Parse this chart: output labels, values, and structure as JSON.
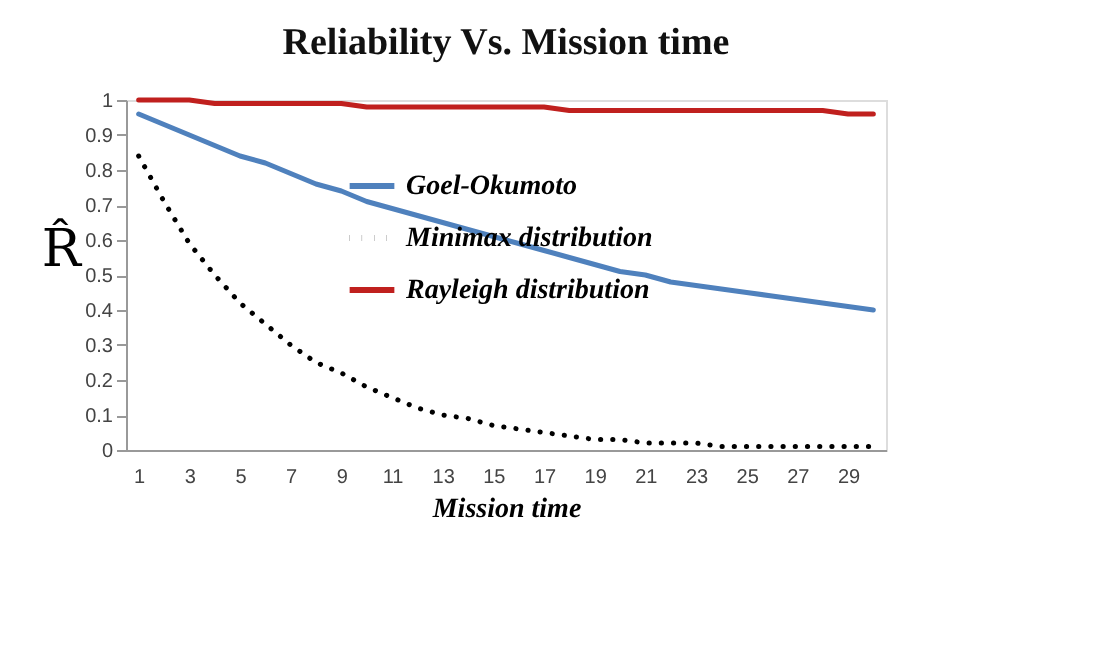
{
  "chart_data": {
    "type": "line",
    "title": "Reliability Vs. Mission time",
    "xlabel": "Mission time",
    "ylabel": "R̂",
    "x": [
      1,
      2,
      3,
      4,
      5,
      6,
      7,
      8,
      9,
      10,
      11,
      12,
      13,
      14,
      15,
      16,
      17,
      18,
      19,
      20,
      21,
      22,
      23,
      24,
      25,
      26,
      27,
      28,
      29,
      30
    ],
    "xlim": [
      0.5,
      30.5
    ],
    "xticks": [
      1,
      3,
      5,
      7,
      9,
      11,
      13,
      15,
      17,
      19,
      21,
      23,
      25,
      27,
      29
    ],
    "ylim": [
      0,
      1
    ],
    "yticks": [
      0,
      0.1,
      0.2,
      0.3,
      0.4,
      0.5,
      0.6,
      0.7,
      0.8,
      0.9,
      1
    ],
    "grid": false,
    "legend": "right",
    "series": [
      {
        "name": "Goel-Okumoto",
        "color": "#4f81bd",
        "line_style": "solid",
        "values": [
          0.96,
          0.93,
          0.9,
          0.87,
          0.84,
          0.82,
          0.79,
          0.76,
          0.74,
          0.71,
          0.69,
          0.67,
          0.65,
          0.63,
          0.61,
          0.59,
          0.57,
          0.55,
          0.53,
          0.51,
          0.5,
          0.48,
          0.47,
          0.46,
          0.45,
          0.44,
          0.43,
          0.42,
          0.41,
          0.4
        ]
      },
      {
        "name": "Minimax distribution",
        "color": "#000000",
        "line_style": "dotted",
        "values": [
          0.84,
          0.71,
          0.59,
          0.5,
          0.42,
          0.36,
          0.3,
          0.25,
          0.22,
          0.18,
          0.15,
          0.12,
          0.1,
          0.09,
          0.07,
          0.06,
          0.05,
          0.04,
          0.03,
          0.03,
          0.02,
          0.02,
          0.02,
          0.01,
          0.01,
          0.01,
          0.01,
          0.01,
          0.01,
          0.01
        ]
      },
      {
        "name": "Rayleigh distribution",
        "color": "#c0201e",
        "line_style": "solid",
        "values": [
          1.0,
          1.0,
          1.0,
          0.99,
          0.99,
          0.99,
          0.99,
          0.99,
          0.99,
          0.98,
          0.98,
          0.98,
          0.98,
          0.98,
          0.98,
          0.98,
          0.98,
          0.97,
          0.97,
          0.97,
          0.97,
          0.97,
          0.97,
          0.97,
          0.97,
          0.97,
          0.97,
          0.97,
          0.96,
          0.96
        ]
      }
    ]
  }
}
